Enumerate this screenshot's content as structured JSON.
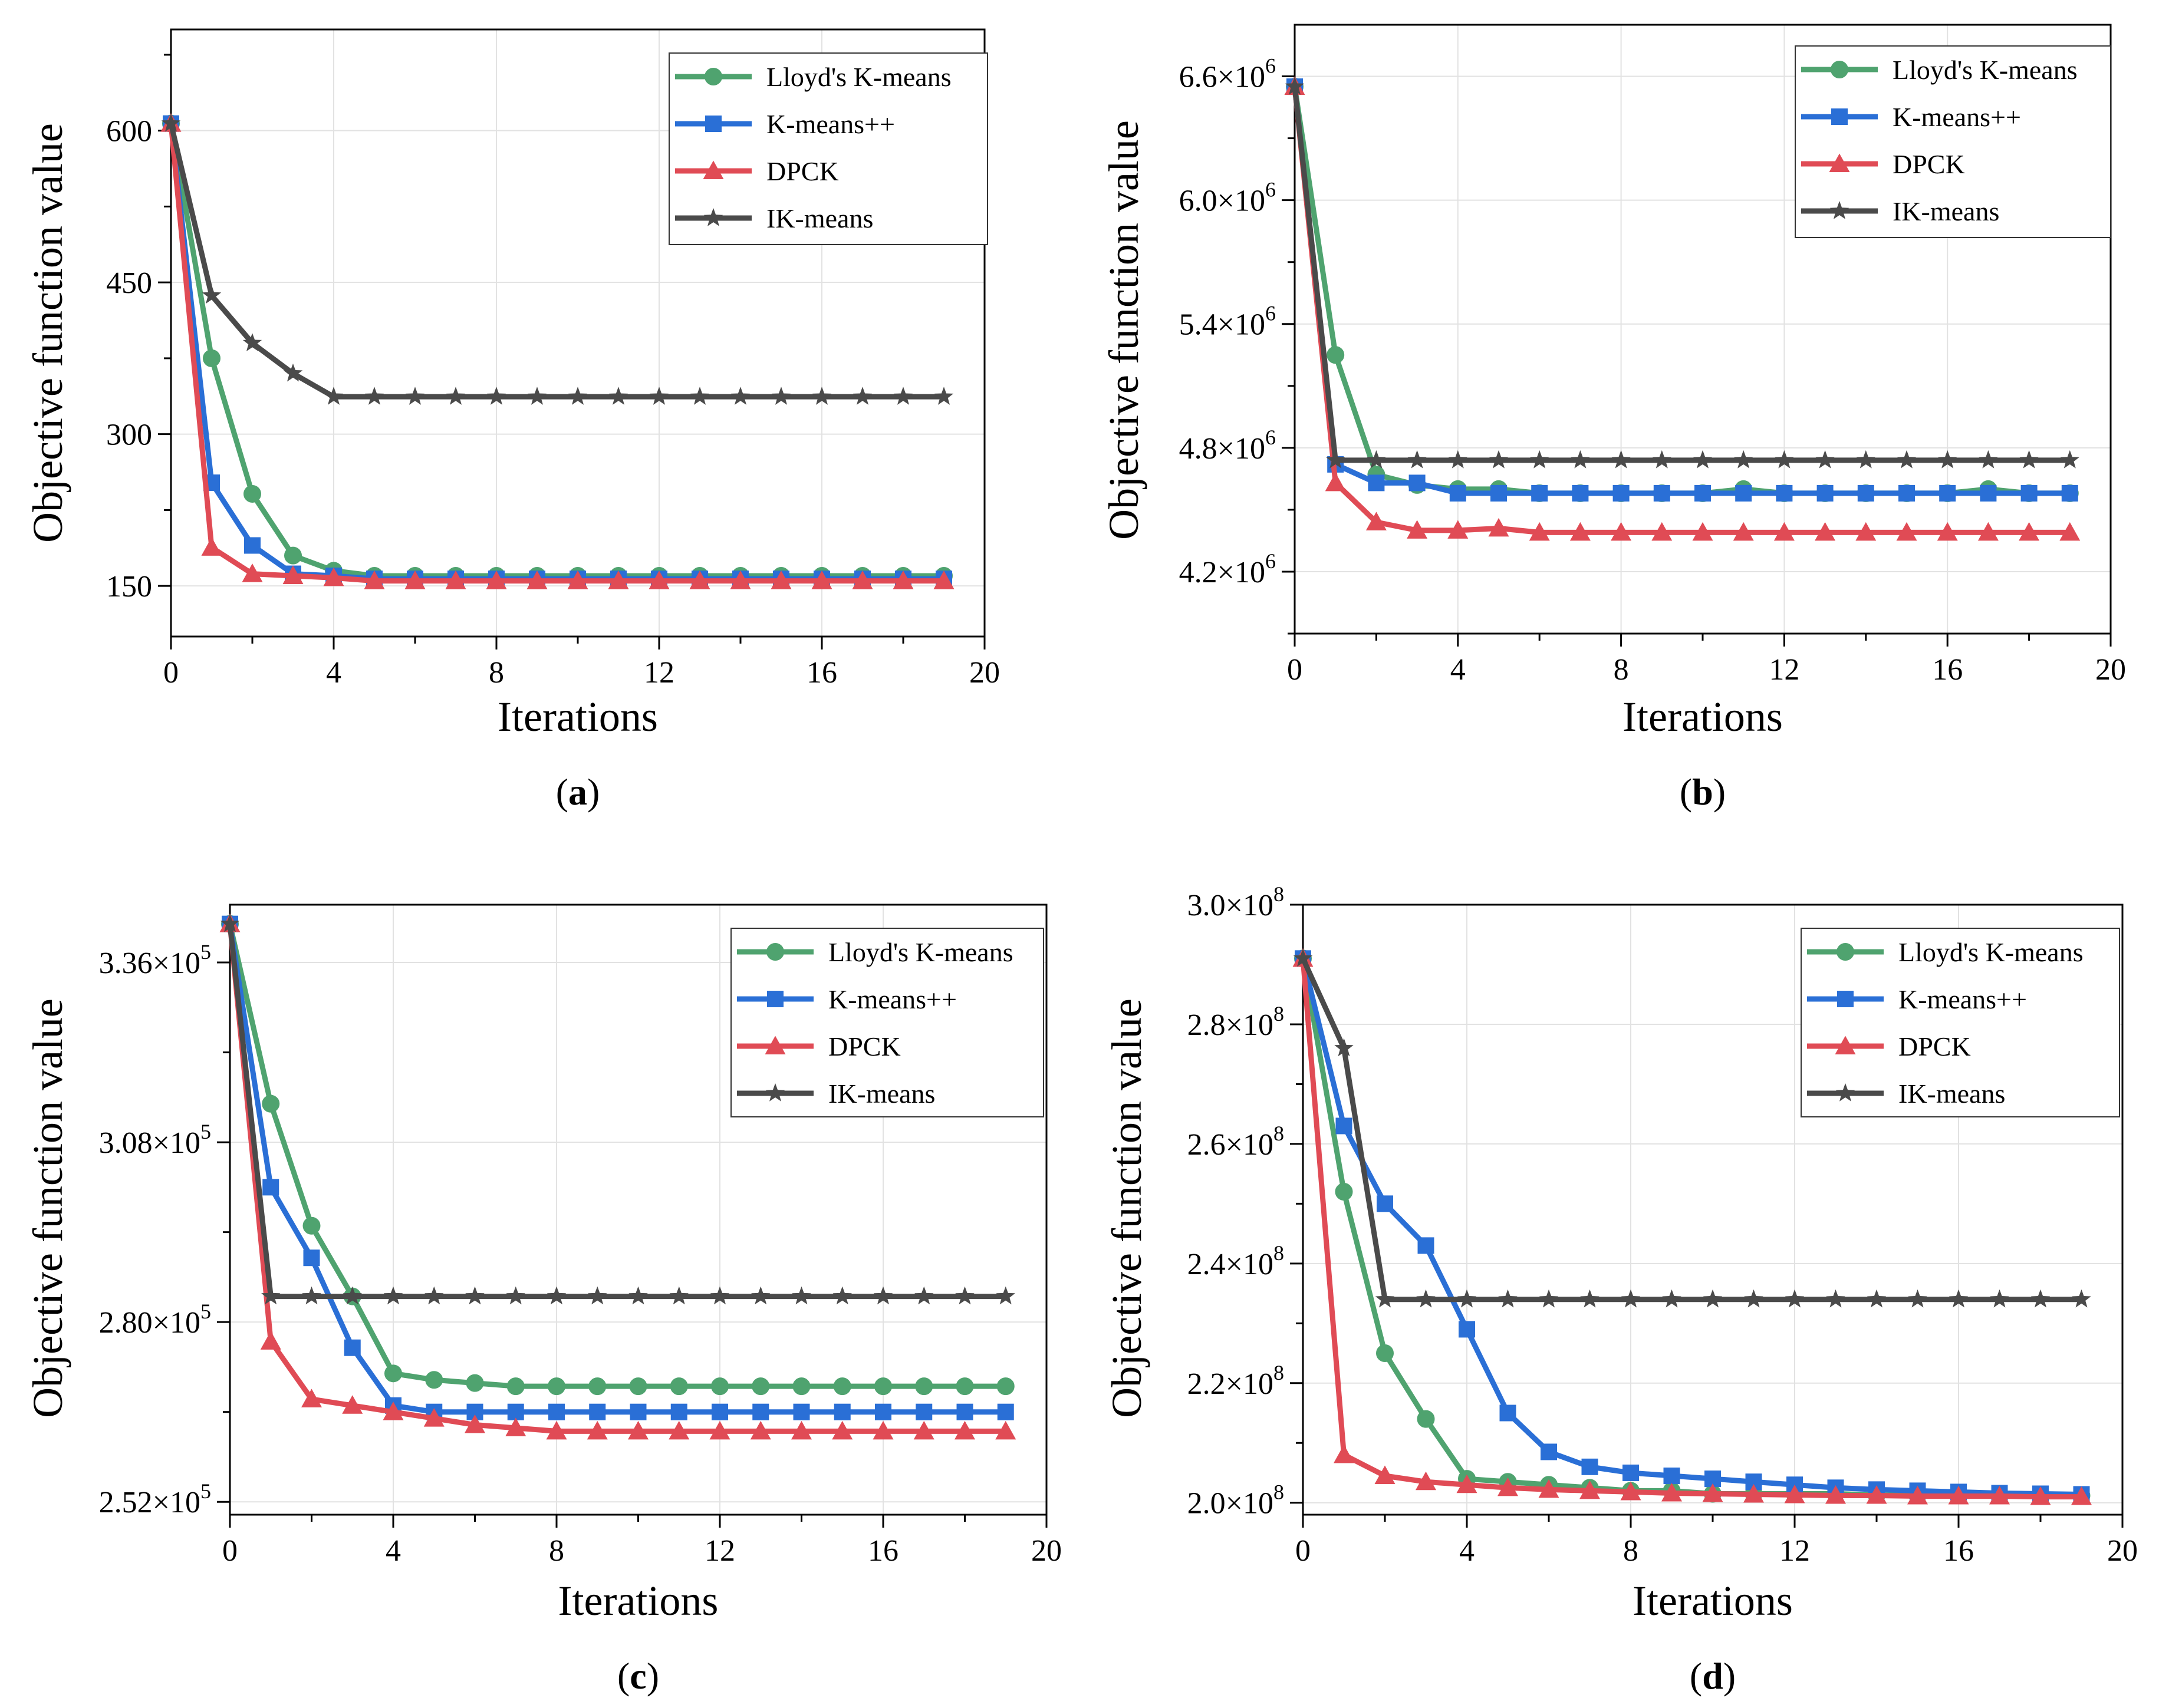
{
  "chart_data": [
    {
      "panel": "a",
      "type": "line",
      "caption_letter": "a",
      "xlabel": "Iterations",
      "ylabel": "Objective function value",
      "xlim": [
        0,
        20
      ],
      "ylim": [
        100,
        700
      ],
      "xticks": [
        0,
        4,
        8,
        12,
        16,
        20
      ],
      "yticks": [
        150,
        300,
        450,
        600
      ],
      "ytick_labels": [
        {
          "m": "150",
          "e": ""
        },
        {
          "m": "300",
          "e": ""
        },
        {
          "m": "450",
          "e": ""
        },
        {
          "m": "600",
          "e": ""
        }
      ],
      "x": [
        0,
        1,
        2,
        3,
        4,
        5,
        6,
        7,
        8,
        9,
        10,
        11,
        12,
        13,
        14,
        15,
        16,
        17,
        18,
        19
      ],
      "series": [
        {
          "name": "Lloyd's K-means",
          "color": "#4fa36f",
          "marker": "circle",
          "values": [
            607,
            375,
            241,
            180,
            165,
            160,
            160,
            160,
            160,
            160,
            160,
            160,
            160,
            160,
            160,
            160,
            160,
            160,
            160,
            160
          ]
        },
        {
          "name": "K-means++",
          "color": "#2a6fd6",
          "marker": "square",
          "values": [
            607,
            252,
            190,
            162,
            160,
            157,
            157,
            157,
            157,
            157,
            157,
            157,
            157,
            157,
            157,
            157,
            157,
            157,
            157,
            157
          ]
        },
        {
          "name": "DPCK",
          "color": "#e04b55",
          "marker": "triangle",
          "values": [
            607,
            188,
            162,
            160,
            158,
            155,
            155,
            155,
            155,
            155,
            155,
            155,
            155,
            155,
            155,
            155,
            155,
            155,
            155,
            155
          ]
        },
        {
          "name": "IK-means",
          "color": "#4a4a4a",
          "marker": "star",
          "values": [
            607,
            437,
            390,
            360,
            337,
            337,
            337,
            337,
            337,
            337,
            337,
            337,
            337,
            337,
            337,
            337,
            337,
            337,
            337,
            337
          ]
        }
      ]
    },
    {
      "panel": "b",
      "type": "line",
      "caption_letter": "b",
      "xlabel": "Iterations",
      "ylabel": "Objective function value",
      "xlim": [
        0,
        20
      ],
      "ylim": [
        3.9,
        6.85
      ],
      "xticks": [
        0,
        4,
        8,
        12,
        16,
        20
      ],
      "yticks": [
        4.2,
        4.8,
        5.4,
        6.0,
        6.6
      ],
      "ytick_labels": [
        {
          "m": "4.2×10",
          "e": "6"
        },
        {
          "m": "4.8×10",
          "e": "6"
        },
        {
          "m": "5.4×10",
          "e": "6"
        },
        {
          "m": "6.0×10",
          "e": "6"
        },
        {
          "m": "6.6×10",
          "e": "6"
        }
      ],
      "x": [
        0,
        1,
        2,
        3,
        4,
        5,
        6,
        7,
        8,
        9,
        10,
        11,
        12,
        13,
        14,
        15,
        16,
        17,
        18,
        19
      ],
      "series": [
        {
          "name": "Lloyd's K-means",
          "color": "#4fa36f",
          "marker": "circle",
          "values": [
            6.55,
            5.25,
            4.67,
            4.62,
            4.6,
            4.6,
            4.58,
            4.58,
            4.58,
            4.58,
            4.58,
            4.6,
            4.58,
            4.58,
            4.58,
            4.58,
            4.58,
            4.6,
            4.58,
            4.58
          ]
        },
        {
          "name": "K-means++",
          "color": "#2a6fd6",
          "marker": "square",
          "values": [
            6.55,
            4.72,
            4.63,
            4.63,
            4.58,
            4.58,
            4.58,
            4.58,
            4.58,
            4.58,
            4.58,
            4.58,
            4.58,
            4.58,
            4.58,
            4.58,
            4.58,
            4.58,
            4.58,
            4.58
          ]
        },
        {
          "name": "DPCK",
          "color": "#e04b55",
          "marker": "triangle",
          "values": [
            6.55,
            4.63,
            4.44,
            4.4,
            4.4,
            4.41,
            4.39,
            4.39,
            4.39,
            4.39,
            4.39,
            4.39,
            4.39,
            4.39,
            4.39,
            4.39,
            4.39,
            4.39,
            4.39,
            4.39
          ]
        },
        {
          "name": "IK-means",
          "color": "#4a4a4a",
          "marker": "star",
          "values": [
            6.55,
            4.74,
            4.74,
            4.74,
            4.74,
            4.74,
            4.74,
            4.74,
            4.74,
            4.74,
            4.74,
            4.74,
            4.74,
            4.74,
            4.74,
            4.74,
            4.74,
            4.74,
            4.74,
            4.74
          ]
        }
      ]
    },
    {
      "panel": "c",
      "type": "line",
      "caption_letter": "c",
      "xlabel": "Iterations",
      "ylabel": "Objective function value",
      "xlim": [
        0,
        20
      ],
      "ylim": [
        2.5,
        3.45
      ],
      "xticks": [
        0,
        4,
        8,
        12,
        16,
        20
      ],
      "yticks": [
        2.52,
        2.8,
        3.08,
        3.36
      ],
      "ytick_labels": [
        {
          "m": "2.52×10",
          "e": "5"
        },
        {
          "m": "2.80×10",
          "e": "5"
        },
        {
          "m": "3.08×10",
          "e": "5"
        },
        {
          "m": "3.36×10",
          "e": "5"
        }
      ],
      "x": [
        0,
        1,
        2,
        3,
        4,
        5,
        6,
        7,
        8,
        9,
        10,
        11,
        12,
        13,
        14,
        15,
        16,
        17,
        18,
        19
      ],
      "series": [
        {
          "name": "Lloyd's K-means",
          "color": "#4fa36f",
          "marker": "circle",
          "values": [
            3.42,
            3.14,
            2.95,
            2.84,
            2.72,
            2.71,
            2.705,
            2.7,
            2.7,
            2.7,
            2.7,
            2.7,
            2.7,
            2.7,
            2.7,
            2.7,
            2.7,
            2.7,
            2.7,
            2.7
          ]
        },
        {
          "name": "K-means++",
          "color": "#2a6fd6",
          "marker": "square",
          "values": [
            3.42,
            3.01,
            2.9,
            2.76,
            2.67,
            2.66,
            2.66,
            2.66,
            2.66,
            2.66,
            2.66,
            2.66,
            2.66,
            2.66,
            2.66,
            2.66,
            2.66,
            2.66,
            2.66,
            2.66
          ]
        },
        {
          "name": "DPCK",
          "color": "#e04b55",
          "marker": "triangle",
          "values": [
            3.42,
            2.77,
            2.68,
            2.67,
            2.66,
            2.65,
            2.64,
            2.635,
            2.63,
            2.63,
            2.63,
            2.63,
            2.63,
            2.63,
            2.63,
            2.63,
            2.63,
            2.63,
            2.63,
            2.63
          ]
        },
        {
          "name": "IK-means",
          "color": "#4a4a4a",
          "marker": "star",
          "values": [
            3.42,
            2.84,
            2.84,
            2.84,
            2.84,
            2.84,
            2.84,
            2.84,
            2.84,
            2.84,
            2.84,
            2.84,
            2.84,
            2.84,
            2.84,
            2.84,
            2.84,
            2.84,
            2.84,
            2.84
          ]
        }
      ]
    },
    {
      "panel": "d",
      "type": "line",
      "caption_letter": "d",
      "xlabel": "Iterations",
      "ylabel": "Objective function value",
      "xlim": [
        0,
        20
      ],
      "ylim": [
        1.98,
        3.0
      ],
      "xticks": [
        0,
        4,
        8,
        12,
        16,
        20
      ],
      "yticks": [
        2.0,
        2.2,
        2.4,
        2.6,
        2.8,
        3.0
      ],
      "ytick_labels": [
        {
          "m": "2.0×10",
          "e": "8"
        },
        {
          "m": "2.2×10",
          "e": "8"
        },
        {
          "m": "2.4×10",
          "e": "8"
        },
        {
          "m": "2.6×10",
          "e": "8"
        },
        {
          "m": "2.8×10",
          "e": "8"
        },
        {
          "m": "3.0×10",
          "e": "8"
        }
      ],
      "x": [
        0,
        1,
        2,
        3,
        4,
        5,
        6,
        7,
        8,
        9,
        10,
        11,
        12,
        13,
        14,
        15,
        16,
        17,
        18,
        19
      ],
      "series": [
        {
          "name": "Lloyd's K-means",
          "color": "#4fa36f",
          "marker": "circle",
          "values": [
            2.91,
            2.52,
            2.25,
            2.14,
            2.04,
            2.035,
            2.03,
            2.025,
            2.02,
            2.02,
            2.015,
            2.015,
            2.015,
            2.015,
            2.013,
            2.012,
            2.012,
            2.012,
            2.012,
            2.012
          ]
        },
        {
          "name": "K-means++",
          "color": "#2a6fd6",
          "marker": "square",
          "values": [
            2.91,
            2.63,
            2.5,
            2.43,
            2.29,
            2.15,
            2.085,
            2.06,
            2.05,
            2.045,
            2.04,
            2.035,
            2.03,
            2.025,
            2.022,
            2.02,
            2.018,
            2.016,
            2.015,
            2.014
          ]
        },
        {
          "name": "DPCK",
          "color": "#e04b55",
          "marker": "triangle",
          "values": [
            2.91,
            2.08,
            2.045,
            2.035,
            2.03,
            2.025,
            2.022,
            2.02,
            2.018,
            2.016,
            2.015,
            2.014,
            2.013,
            2.012,
            2.012,
            2.011,
            2.011,
            2.011,
            2.01,
            2.01
          ]
        },
        {
          "name": "IK-means",
          "color": "#4a4a4a",
          "marker": "star",
          "values": [
            2.91,
            2.76,
            2.34,
            2.34,
            2.34,
            2.34,
            2.34,
            2.34,
            2.34,
            2.34,
            2.34,
            2.34,
            2.34,
            2.34,
            2.34,
            2.34,
            2.34,
            2.34,
            2.34,
            2.34
          ]
        }
      ]
    }
  ]
}
